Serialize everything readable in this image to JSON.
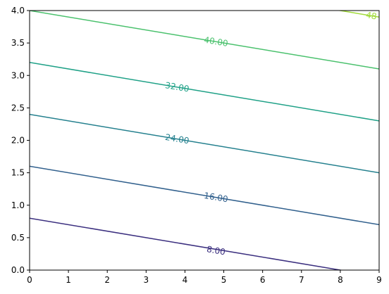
{
  "chart_data": {
    "type": "contour",
    "title": "",
    "xlabel": "",
    "ylabel": "",
    "xlim": [
      0,
      9
    ],
    "ylim": [
      0,
      4
    ],
    "x_ticks": [
      0,
      1,
      2,
      3,
      4,
      5,
      6,
      7,
      8,
      9
    ],
    "y_ticks": [
      0.0,
      0.5,
      1.0,
      1.5,
      2.0,
      2.5,
      3.0,
      3.5,
      4.0
    ],
    "x_tick_labels": [
      "0",
      "1",
      "2",
      "3",
      "4",
      "5",
      "6",
      "7",
      "8",
      "9"
    ],
    "y_tick_labels": [
      "0.0",
      "0.5",
      "1.0",
      "1.5",
      "2.0",
      "2.5",
      "3.0",
      "3.5",
      "4.0"
    ],
    "grid": false,
    "field": "z = x + 10*y",
    "levels": [
      {
        "value": 8,
        "label": "8.00",
        "color": "#3b2f7f",
        "label_at": [
          4.8,
          0.3
        ]
      },
      {
        "value": 16,
        "label": "16.00",
        "color": "#31608d",
        "label_at": [
          4.8,
          1.12
        ]
      },
      {
        "value": 24,
        "label": "24.00",
        "color": "#24808e",
        "label_at": [
          3.8,
          2.02
        ]
      },
      {
        "value": 32,
        "label": "32.00",
        "color": "#1fa187",
        "label_at": [
          3.8,
          2.82
        ]
      },
      {
        "value": 40,
        "label": "40.00",
        "color": "#4ac16d",
        "label_at": [
          4.8,
          3.52
        ]
      },
      {
        "value": 48,
        "label": "48",
        "color": "#a0da39",
        "label_at": [
          8.8,
          3.92
        ]
      }
    ]
  }
}
